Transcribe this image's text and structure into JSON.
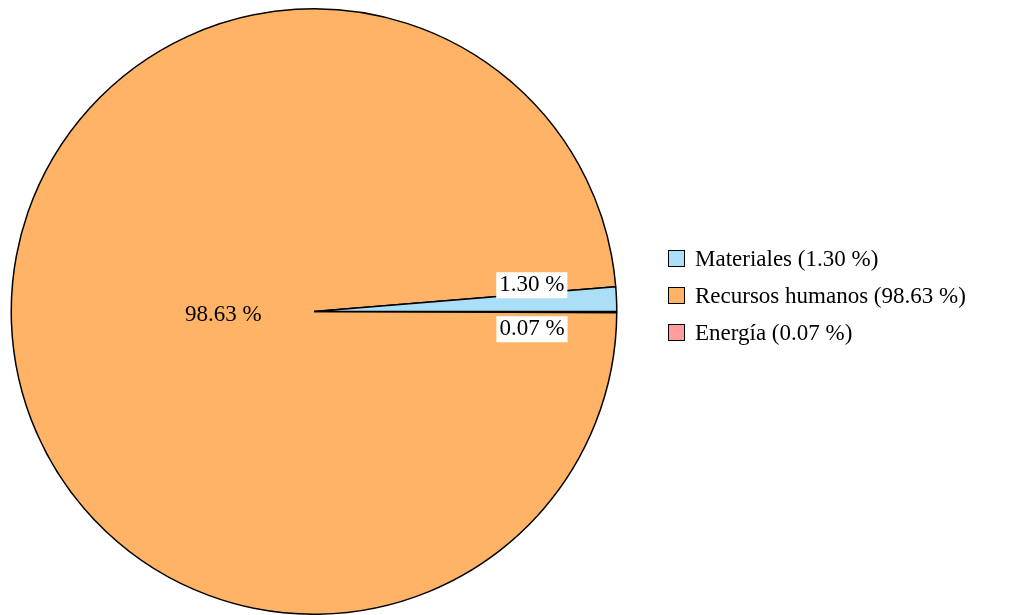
{
  "chart_data": {
    "type": "pie",
    "categories": [
      "Materiales (1.30 %)",
      "Recursos humanos (98.63 %)",
      "Energía (0.07 %)"
    ],
    "values": [
      1.3,
      98.63,
      0.07
    ],
    "colors": [
      "#aadff7",
      "#ffb366",
      "#ff9c9c"
    ],
    "value_labels": [
      "1.30 %",
      "98.63 %",
      "0.07 %"
    ],
    "legend": "right"
  }
}
